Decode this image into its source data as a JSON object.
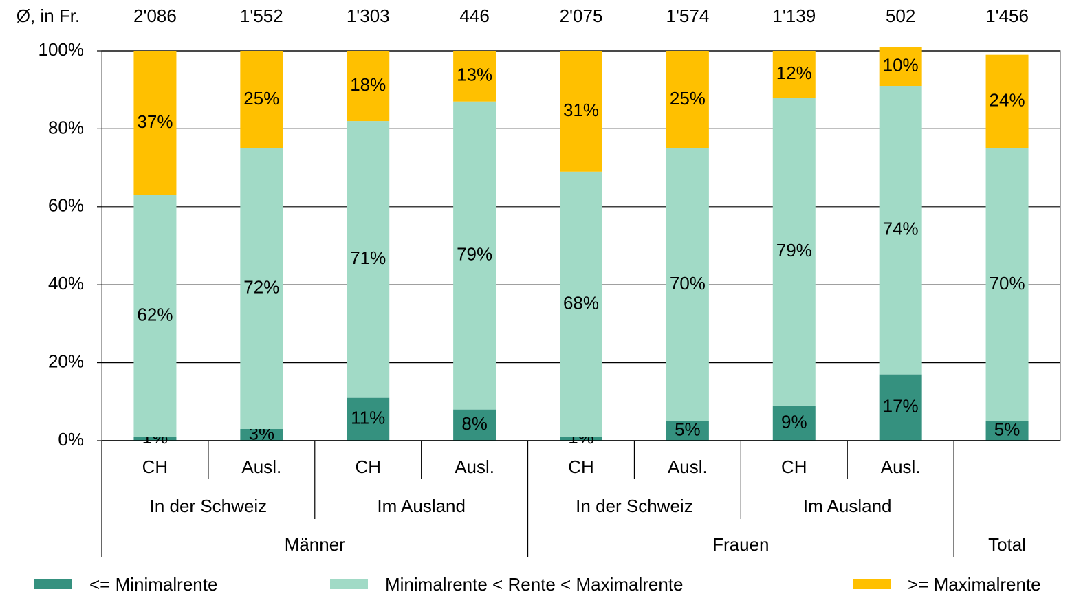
{
  "chart_data": {
    "type": "stacked_bar",
    "average_label": "Ø, in Fr.",
    "averages": [
      "2'086",
      "1'552",
      "1'303",
      "446",
      "2'075",
      "1'574",
      "1'139",
      "502",
      "1'456"
    ],
    "categories": [
      "CH",
      "Ausl.",
      "CH",
      "Ausl.",
      "CH",
      "Ausl.",
      "CH",
      "Ausl.",
      null
    ],
    "subgroups": [
      {
        "label": "In der Schweiz",
        "span": 2
      },
      {
        "label": "Im Ausland",
        "span": 2
      },
      {
        "label": "In der Schweiz",
        "span": 2
      },
      {
        "label": "Im Ausland",
        "span": 2
      }
    ],
    "groups": [
      {
        "label": "Männer",
        "span": 4
      },
      {
        "label": "Frauen",
        "span": 4
      },
      {
        "label": "Total",
        "span": 1
      }
    ],
    "series": [
      {
        "name": "<= Minimalrente",
        "color": "#35917f",
        "values": [
          1,
          3,
          11,
          8,
          1,
          5,
          9,
          17,
          5
        ],
        "value_labels": [
          "1%",
          "3%",
          "11%",
          "8%",
          "1%",
          "5%",
          "9%",
          "17%",
          "5%"
        ]
      },
      {
        "name": "Minimalrente < Rente < Maximalrente",
        "color": "#a1dac6",
        "values": [
          62,
          72,
          71,
          79,
          68,
          70,
          79,
          74,
          70
        ],
        "value_labels": [
          "62%",
          "72%",
          "71%",
          "79%",
          "68%",
          "70%",
          "79%",
          "74%",
          "70%"
        ]
      },
      {
        "name": ">= Maximalrente",
        "color": "#ffc000",
        "values": [
          37,
          25,
          18,
          13,
          31,
          25,
          12,
          10,
          24
        ],
        "value_labels": [
          "37%",
          "25%",
          "18%",
          "13%",
          "31%",
          "25%",
          "12%",
          "10%",
          "24%"
        ]
      }
    ],
    "ylim": [
      0,
      100
    ],
    "yticks": [
      {
        "value": 0,
        "label": "0%"
      },
      {
        "value": 20,
        "label": "20%"
      },
      {
        "value": 40,
        "label": "40%"
      },
      {
        "value": 60,
        "label": "60%"
      },
      {
        "value": 80,
        "label": "80%"
      },
      {
        "value": 100,
        "label": "100%"
      }
    ],
    "grid": true
  }
}
